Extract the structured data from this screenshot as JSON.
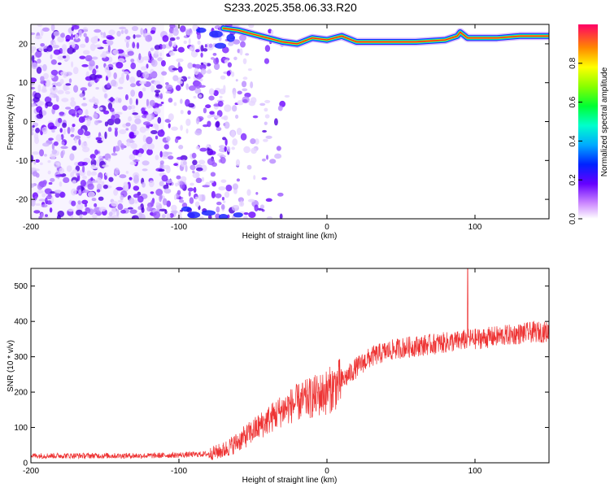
{
  "title": "S233.2025.358.06.33.R20",
  "chart_data": [
    {
      "type": "heatmap",
      "xlabel": "Height of straight line (km)",
      "ylabel": "Frequency (Hz)",
      "xlim": [
        -200,
        150
      ],
      "ylim": [
        -25,
        25
      ],
      "xticks": [
        -200,
        -100,
        0,
        100
      ],
      "yticks": [
        -20,
        -10,
        0,
        10,
        20
      ],
      "grid": false,
      "carrier_track": {
        "description_values": "strong tone track near top of frequency band",
        "x": [
          -70,
          -60,
          -50,
          -40,
          -30,
          -20,
          -10,
          0,
          10,
          20,
          40,
          60,
          80,
          88,
          90,
          95,
          100,
          115,
          130,
          150
        ],
        "y": [
          24,
          23.5,
          22.5,
          21.5,
          20.5,
          20,
          21.5,
          21,
          22,
          20.5,
          20.5,
          20.5,
          21,
          22,
          23,
          21.5,
          21.5,
          21.5,
          22,
          22
        ]
      },
      "noise_region": {
        "x_from": -200,
        "x_to": -70
      },
      "colorbar": {
        "label": "Normalized spectral amplitude",
        "ticks": [
          0.0,
          0.2,
          0.4,
          0.6,
          0.8
        ],
        "tick_labels": [
          "0.0",
          "0.2",
          "0.4",
          "0.6",
          "0.8"
        ],
        "range": [
          0,
          1
        ]
      }
    },
    {
      "type": "line",
      "xlabel": "Height of straight line (km)",
      "ylabel": "SNR (10 * v/v)",
      "xlim": [
        -200,
        150
      ],
      "ylim": [
        0,
        550
      ],
      "xticks": [
        -200,
        -100,
        0,
        100
      ],
      "yticks": [
        0,
        100,
        200,
        300,
        400,
        500
      ],
      "grid": false,
      "color": "#ee3333",
      "series": [
        {
          "x": [
            -200,
            -180,
            -160,
            -140,
            -120,
            -100,
            -80,
            -70,
            -60,
            -50,
            -40,
            -30,
            -20,
            -10,
            0,
            10,
            20,
            30,
            40,
            50,
            60,
            70,
            80,
            90,
            95,
            100,
            110,
            120,
            130,
            140,
            150
          ],
          "y": [
            20,
            20,
            20,
            20,
            20,
            22,
            25,
            35,
            60,
            90,
            120,
            150,
            170,
            185,
            200,
            230,
            270,
            300,
            315,
            325,
            330,
            335,
            340,
            345,
            350,
            350,
            355,
            360,
            365,
            370,
            370
          ]
        }
      ],
      "spike": {
        "x": 95,
        "y": 550
      }
    }
  ]
}
